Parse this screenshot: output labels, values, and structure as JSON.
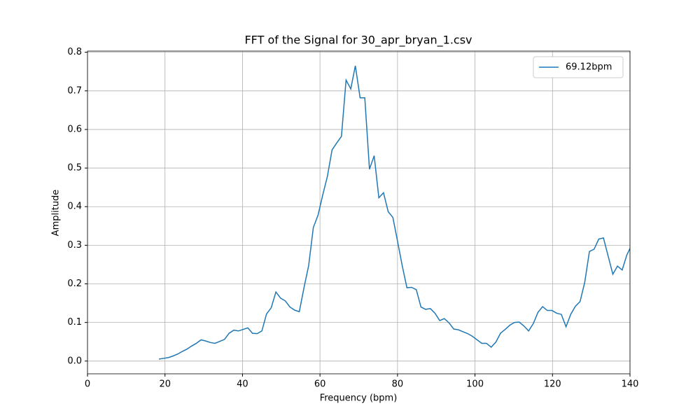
{
  "chart_data": {
    "type": "line",
    "title": "FFT of the Signal for 30_apr_bryan_1.csv",
    "x_label": "Frequency (bpm)",
    "y_label": "Amplitude",
    "x": [
      18.43,
      19.64,
      20.85,
      22.05,
      23.26,
      24.47,
      25.68,
      26.88,
      28.09,
      29.3,
      30.51,
      31.71,
      32.92,
      34.13,
      35.34,
      36.54,
      37.75,
      38.96,
      40.17,
      41.37,
      42.58,
      43.79,
      45.0,
      46.2,
      47.41,
      48.62,
      49.83,
      51.03,
      52.24,
      53.45,
      54.66,
      55.87,
      57.07,
      58.28,
      59.49,
      60.7,
      61.9,
      63.11,
      64.32,
      65.53,
      66.73,
      67.94,
      69.12,
      70.35,
      71.56,
      72.77,
      73.98,
      75.19,
      76.39,
      77.6,
      78.81,
      80.02,
      81.22,
      82.43,
      83.64,
      84.85,
      86.05,
      87.26,
      88.47,
      89.68,
      90.89,
      92.09,
      93.3,
      94.51,
      95.72,
      96.92,
      98.13,
      99.34,
      100.55,
      101.75,
      102.96,
      104.17,
      105.38,
      106.58,
      107.79,
      109.0,
      110.21,
      111.41,
      112.62,
      113.83,
      115.04,
      116.24,
      117.45,
      118.66,
      119.87,
      121.08,
      122.28,
      123.49,
      124.7,
      125.91,
      127.11,
      128.32,
      129.53,
      130.74,
      131.94,
      133.15,
      134.36,
      135.57,
      136.77,
      137.98,
      139.19,
      140.4
    ],
    "series": [
      {
        "name": "69.12bpm",
        "color": "#1f77b4",
        "values": [
          0.005,
          0.007,
          0.009,
          0.013,
          0.018,
          0.025,
          0.031,
          0.039,
          0.046,
          0.055,
          0.052,
          0.048,
          0.046,
          0.051,
          0.056,
          0.072,
          0.08,
          0.078,
          0.082,
          0.086,
          0.072,
          0.071,
          0.078,
          0.122,
          0.138,
          0.179,
          0.163,
          0.156,
          0.14,
          0.132,
          0.128,
          0.19,
          0.247,
          0.346,
          0.378,
          0.43,
          0.478,
          0.547,
          0.565,
          0.582,
          0.728,
          0.705,
          0.765,
          0.682,
          0.682,
          0.497,
          0.532,
          0.423,
          0.436,
          0.387,
          0.372,
          0.31,
          0.247,
          0.19,
          0.191,
          0.185,
          0.14,
          0.134,
          0.136,
          0.124,
          0.105,
          0.11,
          0.099,
          0.083,
          0.081,
          0.076,
          0.071,
          0.064,
          0.055,
          0.046,
          0.046,
          0.036,
          0.049,
          0.072,
          0.082,
          0.093,
          0.1,
          0.101,
          0.091,
          0.078,
          0.097,
          0.126,
          0.141,
          0.131,
          0.131,
          0.124,
          0.121,
          0.089,
          0.121,
          0.142,
          0.154,
          0.204,
          0.284,
          0.29,
          0.316,
          0.319,
          0.272,
          0.225,
          0.246,
          0.236,
          0.275,
          0.3
        ]
      }
    ],
    "xlim": [
      0,
      140
    ],
    "ylim": [
      -0.033,
      0.803
    ],
    "xticks": [
      0,
      20,
      40,
      60,
      80,
      100,
      120,
      140
    ],
    "yticks": [
      {
        "value": 0,
        "label": "0.0"
      },
      0.1,
      0.2,
      0.3,
      0.4,
      0.5,
      0.6,
      0.7,
      0.8
    ],
    "grid": true,
    "legend": "upper right"
  }
}
